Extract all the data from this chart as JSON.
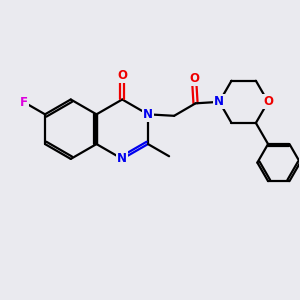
{
  "background_color": "#eaeaef",
  "bond_color": "#000000",
  "N_color": "#0000ee",
  "O_color": "#ee0000",
  "F_color": "#dd00dd",
  "line_width": 1.6,
  "figsize": [
    3.0,
    3.0
  ],
  "dpi": 100,
  "xlim": [
    0,
    10
  ],
  "ylim": [
    0,
    10
  ]
}
